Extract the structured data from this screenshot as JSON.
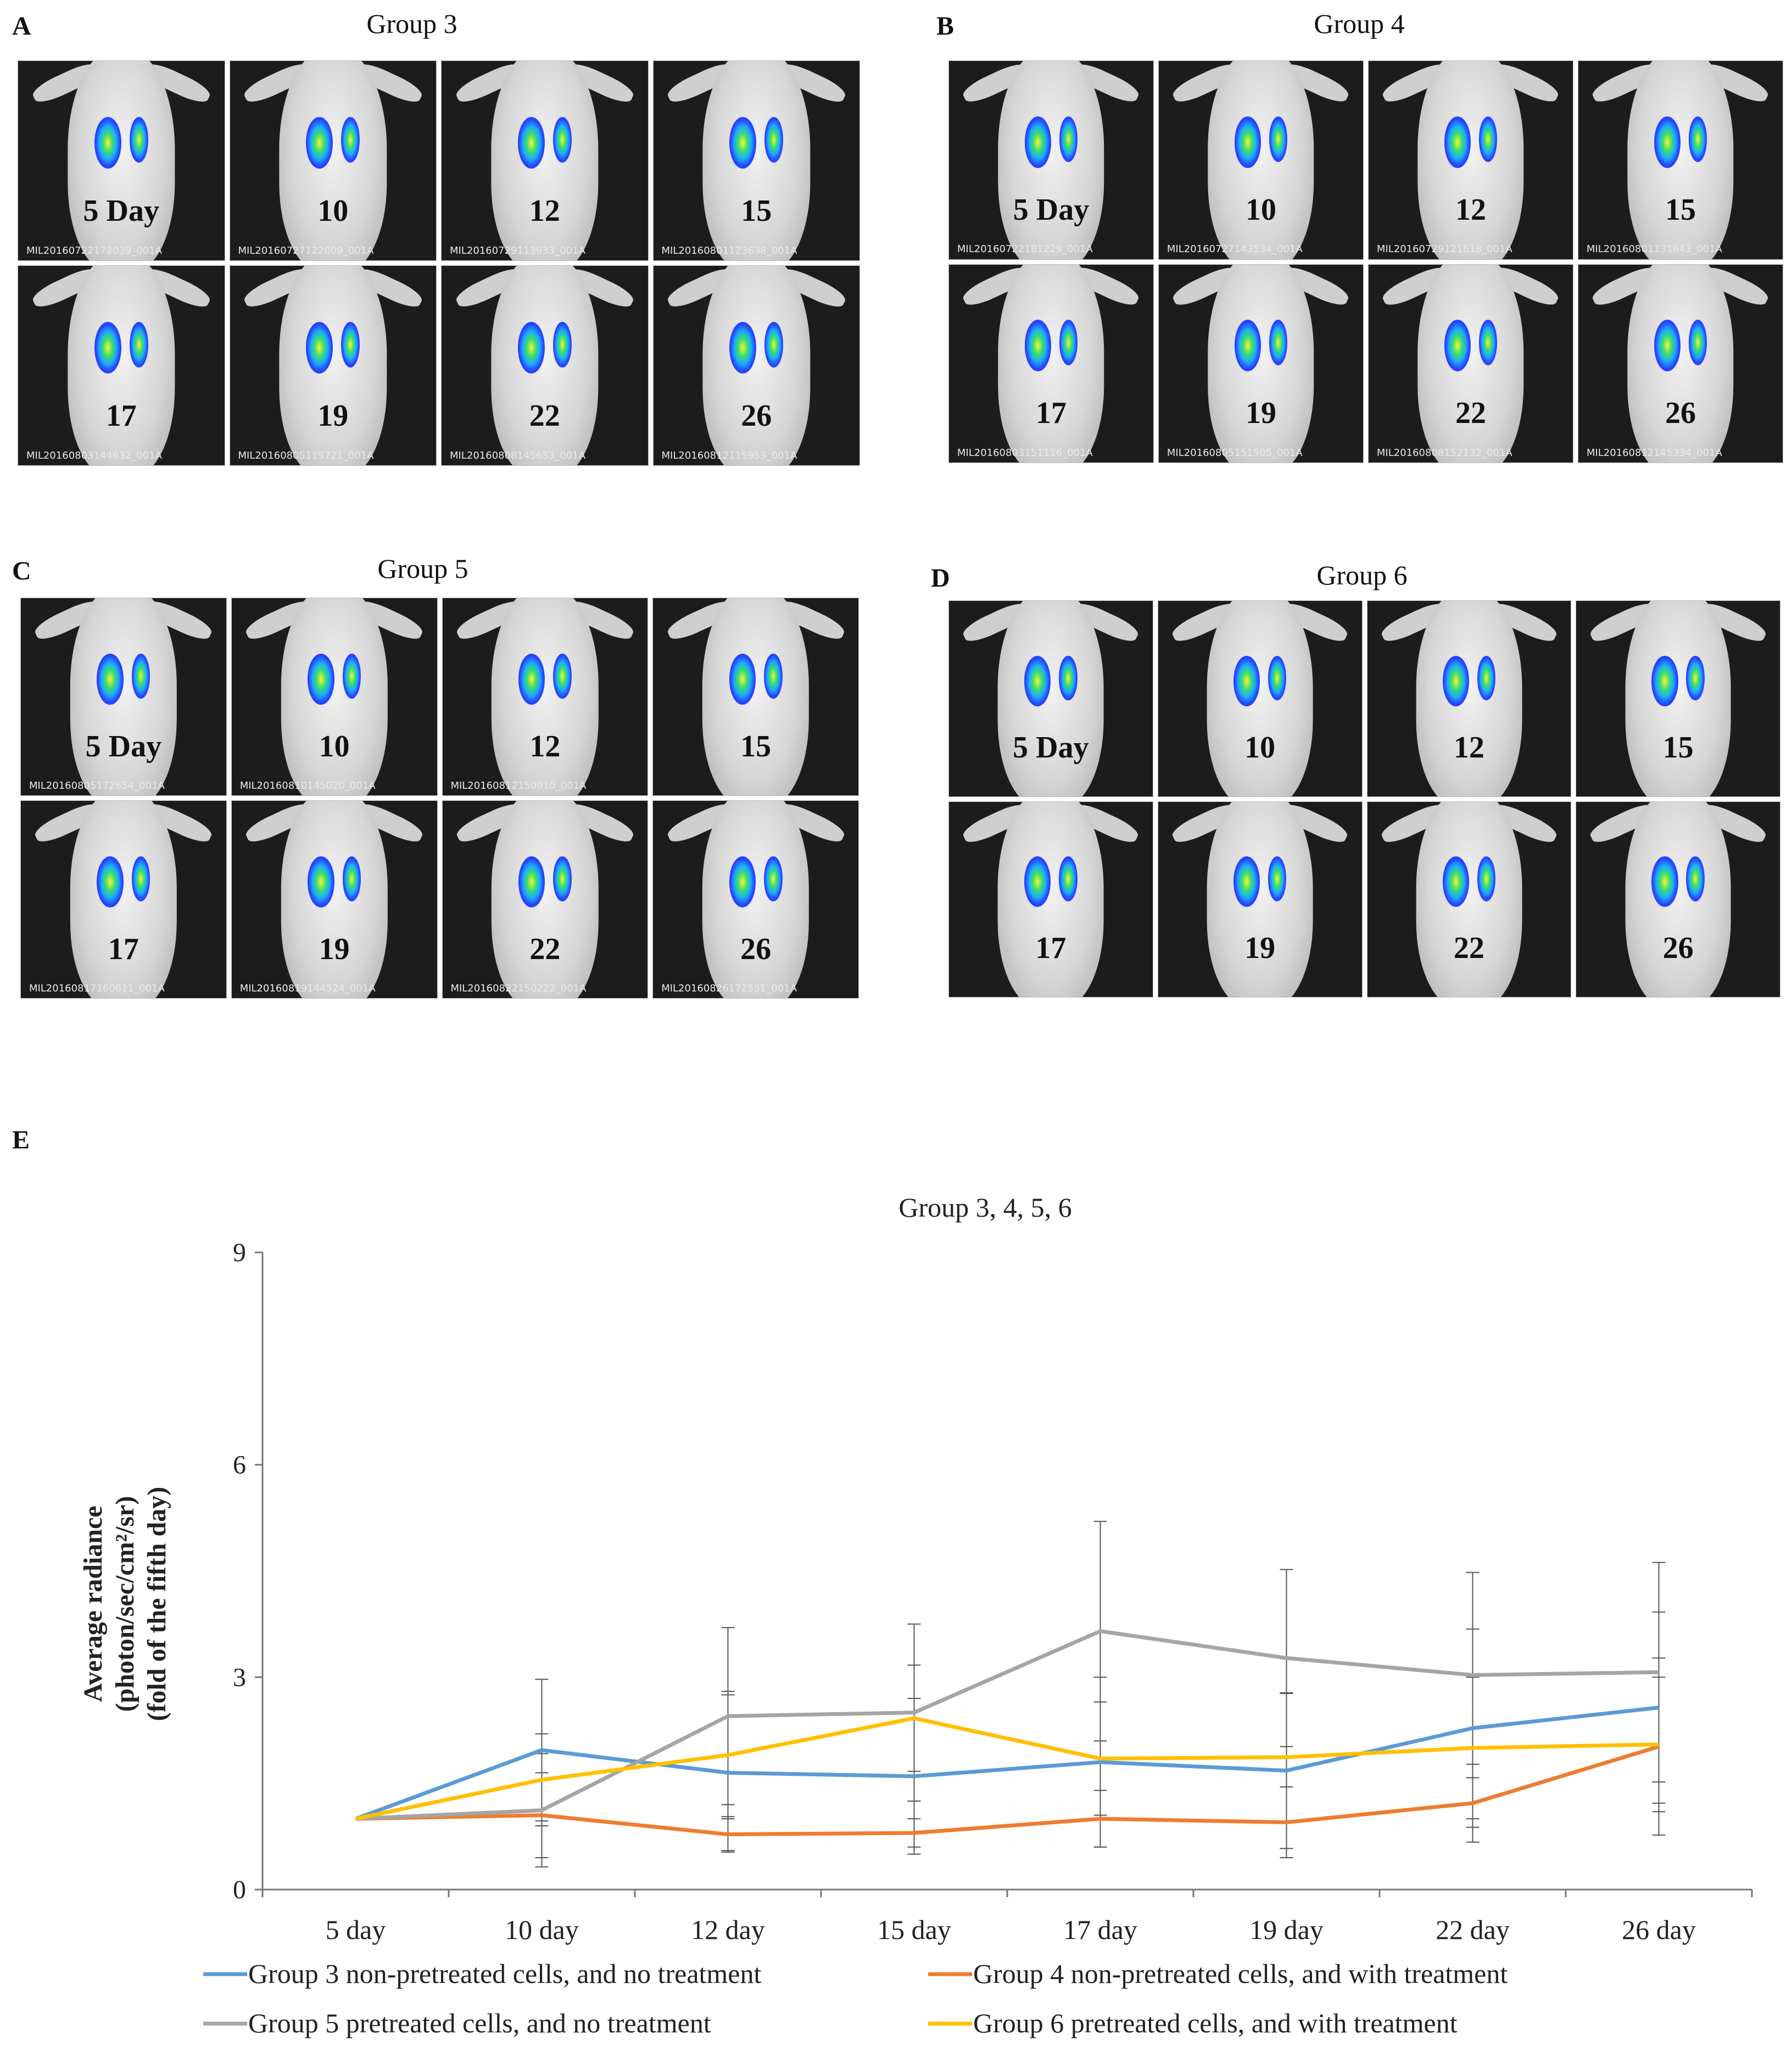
{
  "panels": [
    {
      "letter": "A",
      "title": "Group 3",
      "days": [
        "5 Day",
        "10",
        "12",
        "15",
        "17",
        "19",
        "22",
        "26"
      ],
      "filenames": [
        "MIL20160722172039_001A",
        "MIL20160727122009_001A",
        "MIL20160729113933_001A",
        "MIL20160801123638_001A",
        "MIL20160803144632_001A",
        "MIL20160805115721_001A",
        "MIL20160808145653_001A",
        "MIL20160812115953_001A"
      ]
    },
    {
      "letter": "B",
      "title": "Group 4",
      "days": [
        "5 Day",
        "10",
        "12",
        "15",
        "17",
        "19",
        "22",
        "26"
      ],
      "filenames": [
        "MIL20160722181229_001A",
        "MIL20160727143534_001A",
        "MIL20160729121618_001A",
        "MIL20160801131643_001A",
        "MIL20160803151116_001A",
        "MIL20160805151505_001A",
        "MIL20160808152132_001A",
        "MIL20160812145334_001A"
      ]
    },
    {
      "letter": "C",
      "title": "Group 5",
      "days": [
        "5 Day",
        "10",
        "12",
        "15",
        "17",
        "19",
        "22",
        "26"
      ],
      "filenames": [
        "MIL20160805172654_001A",
        "MIL20160810145020_001A",
        "MIL20160812150910_001A",
        "",
        "MIL20160817160611_001A",
        "MIL20160819144524_001A",
        "MIL20160822150222_001A",
        "MIL20160826172531_001A"
      ]
    },
    {
      "letter": "D",
      "title": "Group 6",
      "days": [
        "5 Day",
        "10",
        "12",
        "15",
        "17",
        "19",
        "22",
        "26"
      ],
      "filenames": [
        "",
        "",
        "",
        "",
        "",
        "",
        "",
        ""
      ]
    }
  ],
  "chart_letter": "E",
  "chart_data": {
    "type": "line",
    "title": "Group 3, 4, 5, 6",
    "xlabel": "",
    "ylabel": [
      "Average radiance",
      "(photon/sec/cm²/sr)",
      "(fold of the fifth day)"
    ],
    "categories": [
      "5 day",
      "10 day",
      "12 day",
      "15 day",
      "17 day",
      "19 day",
      "22 day",
      "26 day"
    ],
    "ylim": [
      0,
      9
    ],
    "yticks": [
      0,
      3,
      6,
      9
    ],
    "series": [
      {
        "name": "Group 3 non-pretreated cells, and no treatment",
        "color": "#5b9bd5",
        "values": [
          1.0,
          1.97,
          1.65,
          1.6,
          1.8,
          1.68,
          2.28,
          2.57
        ],
        "errors": [
          0,
          1.0,
          1.1,
          1.1,
          1.2,
          1.1,
          1.4,
          1.35
        ]
      },
      {
        "name": "Group 4 non-pretreated cells, and with treatment",
        "color": "#ed7d31",
        "values": [
          1.0,
          1.05,
          0.78,
          0.8,
          1.0,
          0.95,
          1.22,
          2.02
        ],
        "errors": [
          0,
          0.6,
          0.25,
          0.2,
          0.4,
          0.5,
          0.55,
          1.25
        ]
      },
      {
        "name": "Group 5 pretreated cells, and no treatment",
        "color": "#a5a5a5",
        "values": [
          1.0,
          1.12,
          2.45,
          2.5,
          3.65,
          3.27,
          3.03,
          3.07
        ],
        "errors": [
          0,
          0.8,
          1.25,
          1.25,
          1.55,
          1.25,
          1.45,
          1.55
        ]
      },
      {
        "name": "Group 6 pretreated cells, and with treatment",
        "color": "#ffc000",
        "values": [
          1.0,
          1.55,
          1.9,
          2.42,
          1.85,
          1.87,
          2.0,
          2.05
        ],
        "errors": [
          0,
          0.65,
          0.9,
          0.75,
          0.8,
          0.9,
          1.0,
          0.95
        ]
      }
    ]
  }
}
